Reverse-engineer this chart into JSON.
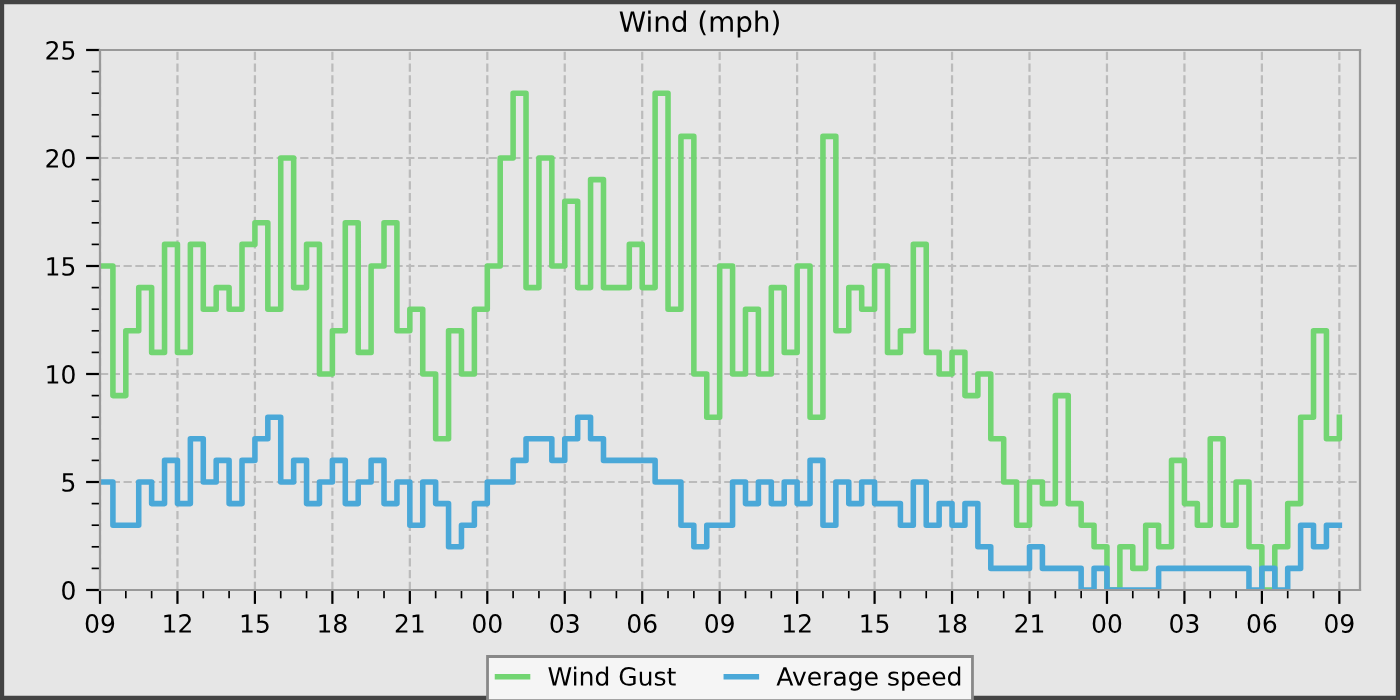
{
  "chart_data": {
    "type": "step",
    "title": "Wind (mph)",
    "x": [
      9,
      9.5,
      10,
      10.5,
      11,
      11.5,
      12,
      12.5,
      13,
      13.5,
      14,
      14.5,
      15,
      15.5,
      16,
      16.5,
      17,
      17.5,
      18,
      18.5,
      19,
      19.5,
      20,
      20.5,
      21,
      21.5,
      22,
      22.5,
      23,
      23.5,
      24,
      24.5,
      25,
      25.5,
      26,
      26.5,
      27,
      27.5,
      28,
      28.5,
      29,
      29.5,
      30,
      30.5,
      31,
      31.5,
      32,
      32.5,
      33,
      33.5,
      34,
      34.5,
      35,
      35.5,
      36,
      36.5,
      37,
      37.5,
      38,
      38.5,
      39,
      39.5,
      40,
      40.5,
      41,
      41.5,
      42,
      42.5,
      43,
      43.5,
      44,
      44.5,
      45,
      45.5,
      46,
      46.5,
      47,
      47.5,
      48,
      48.5,
      49,
      49.5,
      50,
      50.5,
      51,
      51.5,
      52,
      52.5,
      53,
      53.5,
      54,
      54.5,
      55,
      55.5,
      56,
      56.5,
      57
    ],
    "series": [
      {
        "name": "Wind Gust",
        "color": "#72d572",
        "values": [
          15,
          9,
          12,
          14,
          11,
          16,
          11,
          16,
          13,
          14,
          13,
          16,
          17,
          13,
          20,
          14,
          16,
          10,
          12,
          17,
          11,
          15,
          17,
          12,
          13,
          10,
          7,
          12,
          10,
          13,
          15,
          20,
          23,
          14,
          20,
          15,
          18,
          14,
          19,
          14,
          14,
          16,
          14,
          23,
          13,
          21,
          10,
          8,
          15,
          10,
          13,
          10,
          14,
          11,
          15,
          8,
          21,
          12,
          14,
          13,
          15,
          11,
          12,
          16,
          11,
          10,
          11,
          9,
          10,
          7,
          5,
          3,
          5,
          4,
          9,
          4,
          3,
          2,
          0,
          2,
          1,
          3,
          2,
          6,
          4,
          3,
          7,
          3,
          5,
          2,
          0,
          2,
          4,
          8,
          12,
          7,
          8
        ]
      },
      {
        "name": "Average speed",
        "color": "#4aa8d8",
        "values": [
          5,
          3,
          3,
          5,
          4,
          6,
          4,
          7,
          5,
          6,
          4,
          6,
          7,
          8,
          5,
          6,
          4,
          5,
          6,
          4,
          5,
          6,
          4,
          5,
          3,
          5,
          4,
          2,
          3,
          4,
          5,
          5,
          6,
          7,
          7,
          6,
          7,
          8,
          7,
          6,
          6,
          6,
          6,
          5,
          5,
          3,
          2,
          3,
          3,
          5,
          4,
          5,
          4,
          5,
          4,
          6,
          3,
          5,
          4,
          5,
          4,
          4,
          3,
          5,
          3,
          4,
          3,
          4,
          2,
          1,
          1,
          1,
          2,
          1,
          1,
          1,
          0,
          1,
          0,
          0,
          0,
          0,
          1,
          1,
          1,
          1,
          1,
          1,
          1,
          0,
          1,
          0,
          1,
          3,
          2,
          3,
          3
        ]
      }
    ],
    "xlim": [
      9,
      57.8
    ],
    "xticks": [
      {
        "value": 9,
        "label": "09"
      },
      {
        "value": 10,
        "label": null
      },
      {
        "value": 11,
        "label": null
      },
      12,
      {
        "value": 13,
        "label": null
      },
      {
        "value": 14,
        "label": null
      },
      15,
      {
        "value": 16,
        "label": null
      },
      {
        "value": 17,
        "label": null
      },
      18,
      {
        "value": 19,
        "label": null
      },
      {
        "value": 20,
        "label": null
      },
      21,
      {
        "value": 22,
        "label": null
      },
      {
        "value": 23,
        "label": null
      },
      {
        "value": 24,
        "label": "00"
      },
      {
        "value": 25,
        "label": null
      },
      {
        "value": 26,
        "label": null
      },
      {
        "value": 27,
        "label": "03"
      },
      {
        "value": 28,
        "label": null
      },
      {
        "value": 29,
        "label": null
      },
      {
        "value": 30,
        "label": "06"
      },
      {
        "value": 31,
        "label": null
      },
      {
        "value": 32,
        "label": null
      },
      {
        "value": 33,
        "label": "09"
      },
      {
        "value": 34,
        "label": null
      },
      {
        "value": 35,
        "label": null
      },
      {
        "value": 36,
        "label": "12"
      },
      {
        "value": 37,
        "label": null
      },
      {
        "value": 38,
        "label": null
      },
      {
        "value": 39,
        "label": "15"
      },
      {
        "value": 40,
        "label": null
      },
      {
        "value": 41,
        "label": null
      },
      {
        "value": 42,
        "label": "18"
      },
      {
        "value": 43,
        "label": null
      },
      {
        "value": 44,
        "label": null
      },
      {
        "value": 45,
        "label": "21"
      },
      {
        "value": 46,
        "label": null
      },
      {
        "value": 47,
        "label": null
      },
      {
        "value": 48,
        "label": "00"
      },
      {
        "value": 49,
        "label": null
      },
      {
        "value": 50,
        "label": null
      },
      {
        "value": 51,
        "label": "03"
      },
      {
        "value": 52,
        "label": null
      },
      {
        "value": 53,
        "label": null
      },
      {
        "value": 54,
        "label": "06"
      },
      {
        "value": 55,
        "label": null
      },
      {
        "value": 56,
        "label": null
      },
      {
        "value": 57,
        "label": "09"
      }
    ],
    "ylim": [
      0,
      25
    ],
    "yticks": [
      0,
      {
        "value": 1,
        "label": null
      },
      {
        "value": 2,
        "label": null
      },
      {
        "value": 3,
        "label": null
      },
      {
        "value": 4,
        "label": null
      },
      5,
      {
        "value": 6,
        "label": null
      },
      {
        "value": 7,
        "label": null
      },
      {
        "value": 8,
        "label": null
      },
      {
        "value": 9,
        "label": null
      },
      10,
      {
        "value": 11,
        "label": null
      },
      {
        "value": 12,
        "label": null
      },
      {
        "value": 13,
        "label": null
      },
      {
        "value": 14,
        "label": null
      },
      15,
      {
        "value": 16,
        "label": null
      },
      {
        "value": 17,
        "label": null
      },
      {
        "value": 18,
        "label": null
      },
      {
        "value": 19,
        "label": null
      },
      20,
      {
        "value": 21,
        "label": null
      },
      {
        "value": 22,
        "label": null
      },
      {
        "value": 23,
        "label": null
      },
      {
        "value": 24,
        "label": null
      },
      25
    ],
    "grid": true,
    "legend": "bottom",
    "line_style": "solid"
  }
}
